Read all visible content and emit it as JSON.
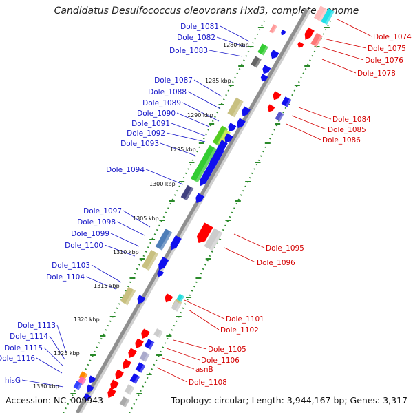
{
  "title": "Candidatus Desulfococcus oleovorans Hxd3, complete genome",
  "accession": "Accession: NC_009943",
  "topology": "Topology: circular; Length: 3,944,167 bp; Genes: 3,317",
  "colors": {
    "forward_label": "#1414c8",
    "reverse_label": "#d40000",
    "backbone": "#8c8c8c",
    "tick_marks": "#228822"
  },
  "ticks": [
    {
      "label": "1280 kbp"
    },
    {
      "label": "1285 kbp"
    },
    {
      "label": "1290 kbp"
    },
    {
      "label": "1295 kbp"
    },
    {
      "label": "1300 kbp"
    },
    {
      "label": "1305 kbp"
    },
    {
      "label": "1310 kbp"
    },
    {
      "label": "1315 kbp"
    },
    {
      "label": "1320 kbp"
    },
    {
      "label": "1325 kbp"
    },
    {
      "label": "1330 kbp"
    }
  ],
  "forward_genes": [
    {
      "label": "Dole_1081"
    },
    {
      "label": "Dole_1082"
    },
    {
      "label": "Dole_1083"
    },
    {
      "label": "Dole_1087"
    },
    {
      "label": "Dole_1088"
    },
    {
      "label": "Dole_1089"
    },
    {
      "label": "Dole_1090"
    },
    {
      "label": "Dole_1091"
    },
    {
      "label": "Dole_1092"
    },
    {
      "label": "Dole_1093"
    },
    {
      "label": "Dole_1094"
    },
    {
      "label": "Dole_1097"
    },
    {
      "label": "Dole_1098"
    },
    {
      "label": "Dole_1099"
    },
    {
      "label": "Dole_1100"
    },
    {
      "label": "Dole_1103"
    },
    {
      "label": "Dole_1104"
    },
    {
      "label": "Dole_1113"
    },
    {
      "label": "Dole_1114"
    },
    {
      "label": "Dole_1115"
    },
    {
      "label": "Dole_1116"
    },
    {
      "label": "hisG"
    }
  ],
  "reverse_genes": [
    {
      "label": "Dole_1074"
    },
    {
      "label": "Dole_1075"
    },
    {
      "label": "Dole_1076"
    },
    {
      "label": "Dole_1078"
    },
    {
      "label": "Dole_1084"
    },
    {
      "label": "Dole_1085"
    },
    {
      "label": "Dole_1086"
    },
    {
      "label": "Dole_1095"
    },
    {
      "label": "Dole_1096"
    },
    {
      "label": "Dole_1101"
    },
    {
      "label": "Dole_1102"
    },
    {
      "label": "Dole_1105"
    },
    {
      "label": "Dole_1106"
    },
    {
      "label": "asnB"
    },
    {
      "label": "Dole_1108"
    }
  ]
}
